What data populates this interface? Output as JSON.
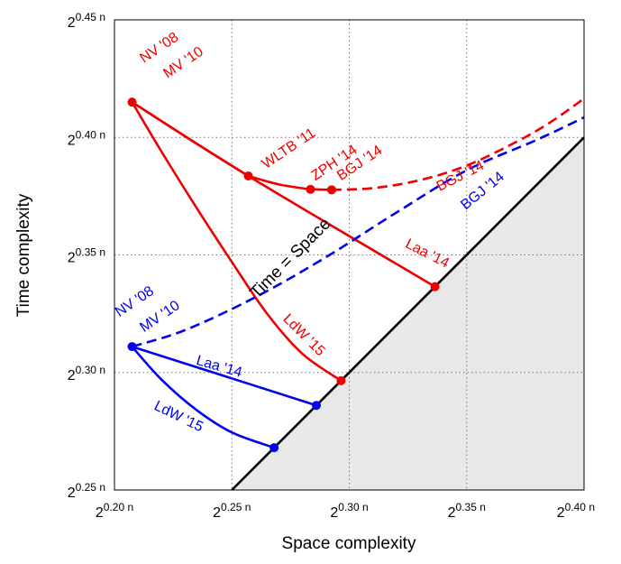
{
  "chart_data": {
    "type": "line",
    "xlabel": "Space complexity",
    "ylabel": "Time complexity",
    "xlim": [
      0.2,
      0.4
    ],
    "ylim": [
      0.25,
      0.45
    ],
    "grid": true,
    "x_ticks": [
      {
        "value": 0.2,
        "base": "2",
        "exp": "0.20 n"
      },
      {
        "value": 0.25,
        "base": "2",
        "exp": "0.25 n"
      },
      {
        "value": 0.3,
        "base": "2",
        "exp": "0.30 n"
      },
      {
        "value": 0.35,
        "base": "2",
        "exp": "0.35 n"
      },
      {
        "value": 0.4,
        "base": "2",
        "exp": "0.40 n"
      }
    ],
    "y_ticks": [
      {
        "value": 0.25,
        "base": "2",
        "exp": "0.25 n"
      },
      {
        "value": 0.3,
        "base": "2",
        "exp": "0.30 n"
      },
      {
        "value": 0.35,
        "base": "2",
        "exp": "0.35 n"
      },
      {
        "value": 0.4,
        "base": "2",
        "exp": "0.40 n"
      },
      {
        "value": 0.45,
        "base": "2",
        "exp": "0.45 n"
      }
    ],
    "colors": {
      "red": "#ee0000",
      "blue": "#0000ee",
      "shade": "#e8e8e8",
      "grid": "#777777"
    },
    "diagonal": {
      "label": "Time = Space",
      "x": [
        0.25,
        0.4
      ],
      "y": [
        0.25,
        0.4
      ]
    },
    "series": [
      {
        "label": "WLTB '11",
        "color": "red",
        "dash": false,
        "points": [
          [
            0.2075,
            0.415
          ],
          [
            0.234,
            0.398
          ],
          [
            0.257,
            0.3836
          ]
        ]
      },
      {
        "label": "ZPH '14",
        "color": "red",
        "dash": false,
        "points": [
          [
            0.257,
            0.3836
          ],
          [
            0.27,
            0.38
          ],
          [
            0.2835,
            0.3779
          ]
        ]
      },
      {
        "label": "BGJ '14",
        "color": "red",
        "dash": false,
        "points": [
          [
            0.2835,
            0.3779
          ],
          [
            0.2925,
            0.3777
          ]
        ]
      },
      {
        "label": "BGJ '14",
        "color": "red",
        "dash": true,
        "points": [
          [
            0.2925,
            0.3777
          ],
          [
            0.31,
            0.3784
          ],
          [
            0.33,
            0.3818
          ],
          [
            0.35,
            0.388
          ],
          [
            0.37,
            0.3975
          ],
          [
            0.385,
            0.406
          ],
          [
            0.4,
            0.4165
          ]
        ]
      },
      {
        "label": "Laa '14",
        "color": "red",
        "dash": false,
        "points": [
          [
            0.2075,
            0.415
          ],
          [
            0.257,
            0.3836
          ],
          [
            0.3365,
            0.3365
          ]
        ]
      },
      {
        "label": "LdW '15",
        "color": "red",
        "dash": false,
        "points": [
          [
            0.2075,
            0.415
          ],
          [
            0.22,
            0.394
          ],
          [
            0.235,
            0.37
          ],
          [
            0.25,
            0.347
          ],
          [
            0.265,
            0.325
          ],
          [
            0.28,
            0.308
          ],
          [
            0.2965,
            0.2965
          ]
        ]
      },
      {
        "label": "BGJ '14",
        "color": "blue",
        "dash": true,
        "points": [
          [
            0.2075,
            0.311
          ],
          [
            0.23,
            0.318
          ],
          [
            0.26,
            0.332
          ],
          [
            0.29,
            0.349
          ],
          [
            0.32,
            0.368
          ],
          [
            0.35,
            0.386
          ],
          [
            0.38,
            0.399
          ],
          [
            0.4,
            0.4085
          ]
        ]
      },
      {
        "label": "Laa '14",
        "color": "blue",
        "dash": false,
        "points": [
          [
            0.2075,
            0.311
          ],
          [
            0.286,
            0.286
          ]
        ]
      },
      {
        "label": "LdW '15",
        "color": "blue",
        "dash": false,
        "points": [
          [
            0.2075,
            0.311
          ],
          [
            0.22,
            0.297
          ],
          [
            0.235,
            0.284
          ],
          [
            0.25,
            0.2745
          ],
          [
            0.268,
            0.268
          ]
        ]
      }
    ],
    "markers": [
      {
        "color": "red",
        "x": 0.2075,
        "y": 0.415
      },
      {
        "color": "red",
        "x": 0.257,
        "y": 0.3836
      },
      {
        "color": "red",
        "x": 0.2835,
        "y": 0.3779
      },
      {
        "color": "red",
        "x": 0.2925,
        "y": 0.3777
      },
      {
        "color": "red",
        "x": 0.3365,
        "y": 0.3365
      },
      {
        "color": "red",
        "x": 0.2965,
        "y": 0.2965
      },
      {
        "color": "blue",
        "x": 0.2075,
        "y": 0.311
      },
      {
        "color": "blue",
        "x": 0.286,
        "y": 0.286
      },
      {
        "color": "blue",
        "x": 0.268,
        "y": 0.268
      }
    ],
    "annotations": [
      {
        "text": "NV '08",
        "color": "red",
        "x": 0.2125,
        "y": 0.4315,
        "rotate": -34
      },
      {
        "text": "MV '10",
        "color": "red",
        "x": 0.2225,
        "y": 0.425,
        "rotate": -34
      },
      {
        "text": "WLTB '11",
        "color": "red",
        "x": 0.2645,
        "y": 0.3865,
        "rotate": -34
      },
      {
        "text": "ZPH '14",
        "color": "red",
        "x": 0.2855,
        "y": 0.3815,
        "rotate": -34
      },
      {
        "text": "BGJ '14",
        "color": "red",
        "x": 0.2965,
        "y": 0.3815,
        "rotate": -34
      },
      {
        "text": "BGJ '14",
        "color": "red",
        "x": 0.3385,
        "y": 0.377,
        "rotate": -27
      },
      {
        "text": "BGJ '14",
        "color": "blue",
        "x": 0.3495,
        "y": 0.369,
        "rotate": -39
      },
      {
        "text": "Laa '14",
        "color": "red",
        "x": 0.3235,
        "y": 0.3535,
        "rotate": 27
      },
      {
        "text": "LdW '15",
        "color": "red",
        "x": 0.2715,
        "y": 0.3225,
        "rotate": 45
      },
      {
        "text": "NV '08",
        "color": "blue",
        "x": 0.202,
        "y": 0.3235,
        "rotate": -34
      },
      {
        "text": "MV '10",
        "color": "blue",
        "x": 0.2125,
        "y": 0.317,
        "rotate": -34
      },
      {
        "text": "Laa '14",
        "color": "blue",
        "x": 0.2345,
        "y": 0.3035,
        "rotate": 16
      },
      {
        "text": "LdW '15",
        "color": "blue",
        "x": 0.2165,
        "y": 0.2845,
        "rotate": 26
      }
    ]
  }
}
